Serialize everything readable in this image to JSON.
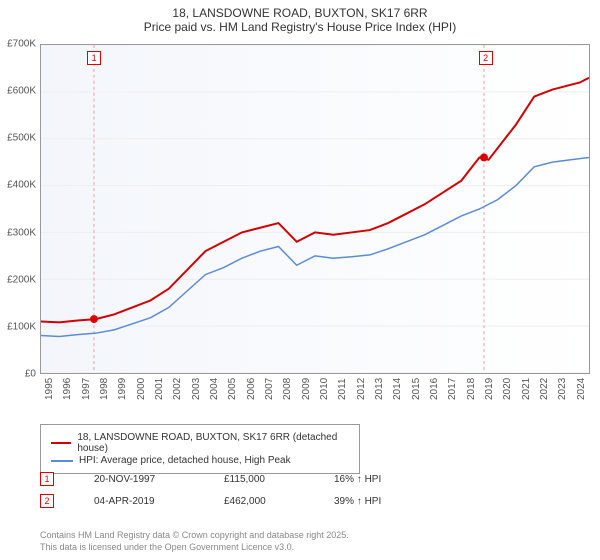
{
  "title1": "18, LANSDOWNE ROAD, BUXTON, SK17 6RR",
  "title2": "Price paid vs. HM Land Registry's House Price Index (HPI)",
  "chart": {
    "type": "line",
    "background_color": "#f3f6fb",
    "grid_color": "#eeeeee",
    "border_color": "#999999",
    "ylabel_prefix": "£",
    "ylim": [
      0,
      700
    ],
    "ytick_step": 100,
    "yticks": [
      "£0",
      "£100K",
      "£200K",
      "£300K",
      "£400K",
      "£500K",
      "£600K",
      "£700K"
    ],
    "xlim": [
      1995,
      2025
    ],
    "xticks": [
      1995,
      1996,
      1997,
      1998,
      1999,
      2000,
      2001,
      2002,
      2003,
      2004,
      2005,
      2006,
      2007,
      2008,
      2009,
      2010,
      2011,
      2012,
      2013,
      2014,
      2015,
      2016,
      2017,
      2018,
      2019,
      2020,
      2021,
      2022,
      2023,
      2024
    ],
    "label_fontsize": 10,
    "series": [
      {
        "name": "18, LANSDOWNE ROAD, BUXTON, SK17 6RR (detached house)",
        "color": "#d00000",
        "line_width": 2,
        "points": [
          [
            1995,
            110
          ],
          [
            1996,
            108
          ],
          [
            1997,
            112
          ],
          [
            1998,
            115
          ],
          [
            1999,
            125
          ],
          [
            2000,
            140
          ],
          [
            2001,
            155
          ],
          [
            2002,
            180
          ],
          [
            2003,
            220
          ],
          [
            2004,
            260
          ],
          [
            2005,
            280
          ],
          [
            2006,
            300
          ],
          [
            2007,
            310
          ],
          [
            2008,
            320
          ],
          [
            2009,
            280
          ],
          [
            2010,
            300
          ],
          [
            2011,
            295
          ],
          [
            2012,
            300
          ],
          [
            2013,
            305
          ],
          [
            2014,
            320
          ],
          [
            2015,
            340
          ],
          [
            2016,
            360
          ],
          [
            2017,
            385
          ],
          [
            2018,
            410
          ],
          [
            2019,
            460
          ],
          [
            2019.5,
            455
          ],
          [
            2020,
            480
          ],
          [
            2021,
            530
          ],
          [
            2022,
            590
          ],
          [
            2023,
            605
          ],
          [
            2024,
            615
          ],
          [
            2024.5,
            620
          ],
          [
            2025,
            630
          ]
        ]
      },
      {
        "name": "HPI: Average price, detached house, High Peak",
        "color": "#5b8bd4",
        "line_width": 1.5,
        "points": [
          [
            1995,
            80
          ],
          [
            1996,
            78
          ],
          [
            1997,
            82
          ],
          [
            1998,
            85
          ],
          [
            1999,
            92
          ],
          [
            2000,
            105
          ],
          [
            2001,
            118
          ],
          [
            2002,
            140
          ],
          [
            2003,
            175
          ],
          [
            2004,
            210
          ],
          [
            2005,
            225
          ],
          [
            2006,
            245
          ],
          [
            2007,
            260
          ],
          [
            2008,
            270
          ],
          [
            2009,
            230
          ],
          [
            2010,
            250
          ],
          [
            2011,
            245
          ],
          [
            2012,
            248
          ],
          [
            2013,
            252
          ],
          [
            2014,
            265
          ],
          [
            2015,
            280
          ],
          [
            2016,
            295
          ],
          [
            2017,
            315
          ],
          [
            2018,
            335
          ],
          [
            2019,
            350
          ],
          [
            2020,
            370
          ],
          [
            2021,
            400
          ],
          [
            2022,
            440
          ],
          [
            2023,
            450
          ],
          [
            2024,
            455
          ],
          [
            2025,
            460
          ]
        ]
      }
    ],
    "markers": [
      {
        "label": "1",
        "year": 1997.9,
        "show_dot_series": 0
      },
      {
        "label": "2",
        "year": 2019.25,
        "show_dot_series": 0
      }
    ]
  },
  "legend": {
    "items": [
      {
        "color": "#d00000",
        "label": "18, LANSDOWNE ROAD, BUXTON, SK17 6RR (detached house)"
      },
      {
        "color": "#5b8bd4",
        "label": "HPI: Average price, detached house, High Peak"
      }
    ]
  },
  "sales": [
    {
      "marker": "1",
      "date": "20-NOV-1997",
      "price": "£115,000",
      "delta": "16% ↑ HPI"
    },
    {
      "marker": "2",
      "date": "04-APR-2019",
      "price": "£462,000",
      "delta": "39% ↑ HPI"
    }
  ],
  "license1": "Contains HM Land Registry data © Crown copyright and database right 2025.",
  "license2": "This data is licensed under the Open Government Licence v3.0."
}
